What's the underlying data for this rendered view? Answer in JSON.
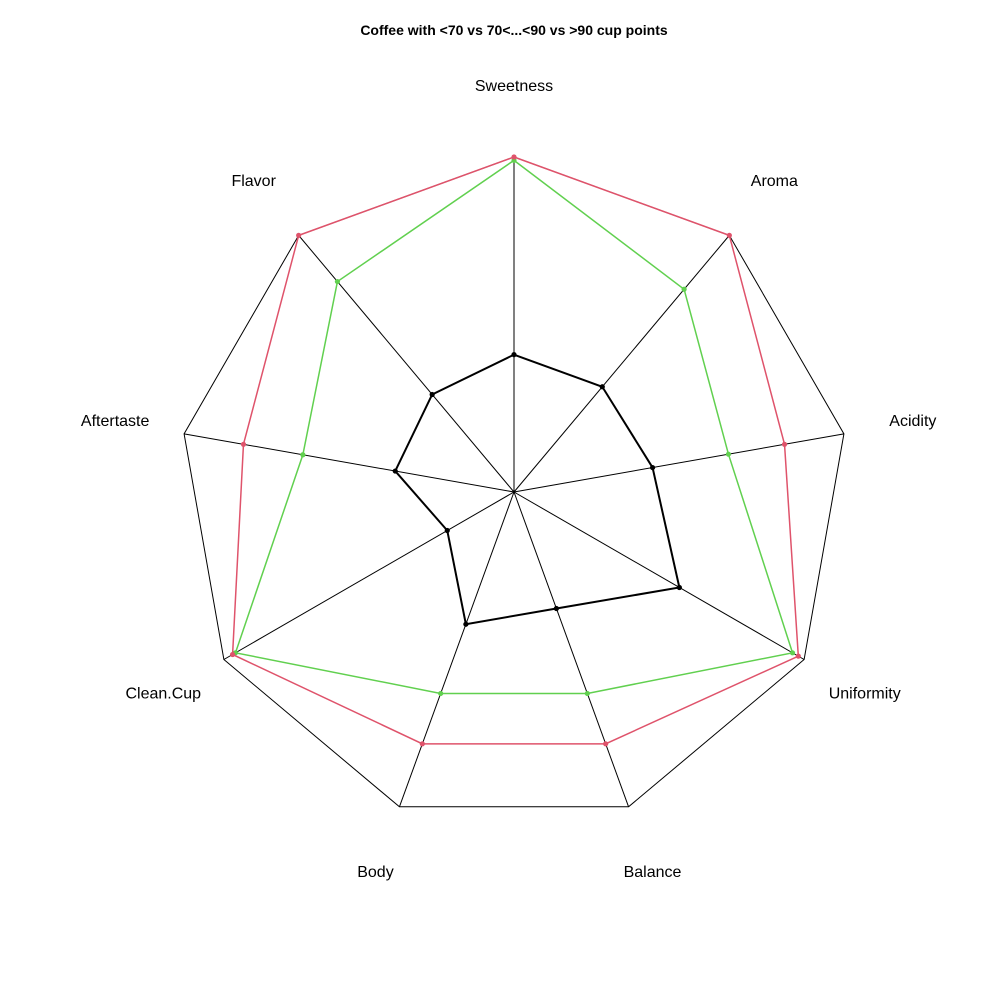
{
  "chart_data": {
    "type": "radar",
    "title": "Coffee with <70 vs 70<...<90 vs >90 cup points",
    "axes": [
      "Sweetness",
      "Aroma",
      "Acidity",
      "Uniformity",
      "Balance",
      "Body",
      "Clean.Cup",
      "Aftertaste",
      "Flavor"
    ],
    "range": [
      0,
      1
    ],
    "series": [
      {
        "color": "#000000",
        "values": [
          0.41,
          0.41,
          0.42,
          0.57,
          0.37,
          0.42,
          0.23,
          0.36,
          0.38
        ]
      },
      {
        "color": "#61D04F",
        "values": [
          0.99,
          0.79,
          0.65,
          0.96,
          0.64,
          0.64,
          0.96,
          0.64,
          0.82
        ]
      },
      {
        "color": "#DF536B",
        "values": [
          1.0,
          1.0,
          0.82,
          0.98,
          0.8,
          0.8,
          0.97,
          0.82,
          1.0
        ]
      }
    ]
  }
}
